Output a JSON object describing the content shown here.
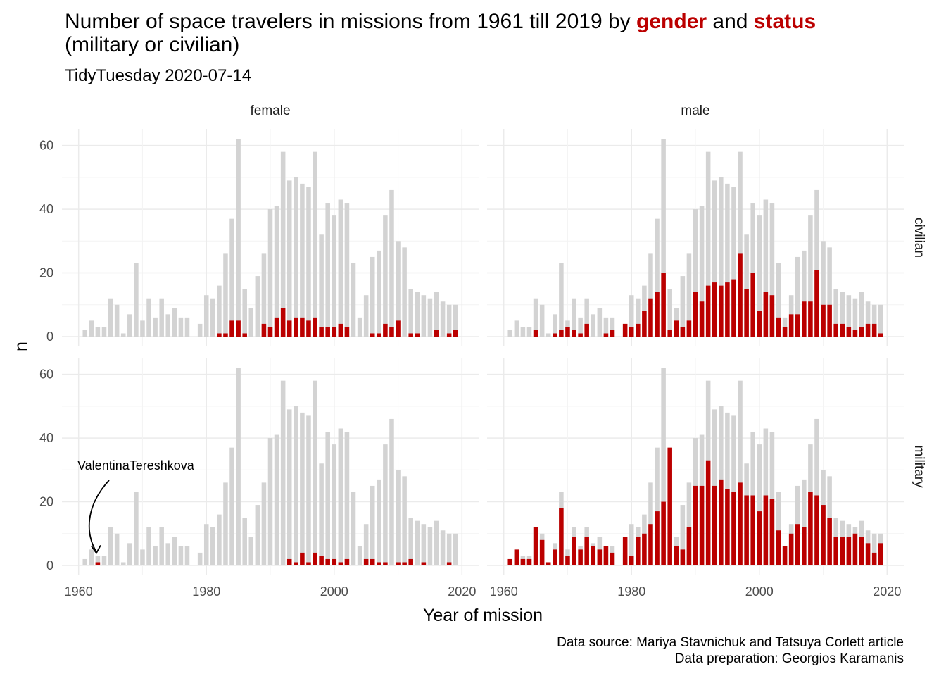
{
  "chart_data": {
    "type": "bar",
    "title": {
      "parts": [
        {
          "text": "Number of space travelers in missions from 1961 till 2019 by ",
          "highlight": false
        },
        {
          "text": "gender",
          "highlight": true
        },
        {
          "text": " and ",
          "highlight": false
        },
        {
          "text": "status",
          "highlight": true
        }
      ],
      "line2": "(military or civilian)"
    },
    "subtitle": "TidyTuesday 2020-07-14",
    "xlabel": "Year of mission",
    "ylabel": "n",
    "xlim": [
      1960,
      2020
    ],
    "ylim": [
      0,
      65
    ],
    "x_ticks": [
      "1960",
      "1980",
      "2000",
      "2020"
    ],
    "y_ticks": [
      "0",
      "20",
      "40",
      "60"
    ],
    "facet_columns": [
      "female",
      "male"
    ],
    "facet_rows": [
      "civilian",
      "military"
    ],
    "background_series": {
      "name": "all travelers",
      "color": "#d3d3d3",
      "years": [
        1961,
        1962,
        1963,
        1964,
        1965,
        1966,
        1967,
        1968,
        1969,
        1970,
        1971,
        1972,
        1973,
        1974,
        1975,
        1976,
        1977,
        1978,
        1979,
        1980,
        1981,
        1982,
        1983,
        1984,
        1985,
        1986,
        1987,
        1988,
        1989,
        1990,
        1991,
        1992,
        1993,
        1994,
        1995,
        1996,
        1997,
        1998,
        1999,
        2000,
        2001,
        2002,
        2003,
        2004,
        2005,
        2006,
        2007,
        2008,
        2009,
        2010,
        2011,
        2012,
        2013,
        2014,
        2015,
        2016,
        2017,
        2018,
        2019
      ],
      "values": [
        2,
        5,
        3,
        3,
        12,
        10,
        1,
        7,
        23,
        5,
        12,
        6,
        12,
        7,
        9,
        6,
        6,
        0,
        4,
        13,
        12,
        16,
        26,
        37,
        62,
        15,
        9,
        19,
        26,
        40,
        41,
        58,
        49,
        50,
        48,
        47,
        58,
        32,
        42,
        38,
        43,
        42,
        23,
        6,
        13,
        25,
        27,
        38,
        46,
        30,
        28,
        15,
        14,
        13,
        12,
        14,
        11,
        10,
        10
      ]
    },
    "highlight_color": "#bb0000",
    "panels": [
      {
        "gender": "female",
        "status": "civilian",
        "values": [
          0,
          0,
          0,
          0,
          0,
          0,
          0,
          0,
          0,
          0,
          0,
          0,
          0,
          0,
          0,
          0,
          0,
          0,
          0,
          0,
          0,
          1,
          1,
          5,
          5,
          1,
          0,
          0,
          4,
          3,
          6,
          9,
          5,
          6,
          6,
          5,
          6,
          3,
          3,
          3,
          4,
          3,
          0,
          0,
          0,
          1,
          1,
          4,
          3,
          5,
          0,
          1,
          1,
          0,
          0,
          2,
          0,
          1,
          2
        ]
      },
      {
        "gender": "male",
        "status": "civilian",
        "values": [
          0,
          0,
          0,
          0,
          2,
          0,
          0,
          1,
          2,
          3,
          2,
          1,
          4,
          0,
          0,
          1,
          2,
          0,
          4,
          3,
          4,
          8,
          12,
          14,
          20,
          2,
          5,
          3,
          5,
          14,
          11,
          16,
          17,
          16,
          17,
          18,
          26,
          15,
          20,
          8,
          14,
          13,
          6,
          3,
          7,
          7,
          11,
          11,
          21,
          10,
          10,
          4,
          4,
          3,
          2,
          3,
          4,
          4,
          1
        ]
      },
      {
        "gender": "female",
        "status": "military",
        "values": [
          0,
          0,
          1,
          0,
          0,
          0,
          0,
          0,
          0,
          0,
          0,
          0,
          0,
          0,
          0,
          0,
          0,
          0,
          0,
          0,
          0,
          0,
          0,
          0,
          0,
          0,
          0,
          0,
          0,
          0,
          0,
          0,
          2,
          1,
          4,
          1,
          4,
          3,
          2,
          2,
          1,
          2,
          0,
          0,
          2,
          2,
          1,
          1,
          0,
          1,
          1,
          2,
          0,
          1,
          0,
          0,
          0,
          1,
          0
        ]
      },
      {
        "gender": "male",
        "status": "military",
        "values": [
          2,
          5,
          2,
          2,
          12,
          8,
          1,
          5,
          18,
          3,
          9,
          5,
          9,
          6,
          5,
          6,
          4,
          0,
          9,
          3,
          9,
          10,
          13,
          17,
          20,
          37,
          6,
          5,
          12,
          25,
          25,
          33,
          25,
          27,
          24,
          23,
          26,
          22,
          22,
          17,
          22,
          21,
          11,
          6,
          10,
          13,
          12,
          23,
          22,
          19,
          15,
          9,
          9,
          9,
          10,
          9,
          7,
          4,
          7
        ]
      }
    ],
    "annotation": {
      "text": "ValentinaTereshkova",
      "year": 1963,
      "panel": "female-military"
    },
    "caption": [
      "Data source: Mariya Stavnichuk and Tatsuya Corlett article",
      "Data preparation: Georgios Karamanis"
    ],
    "grid": true,
    "legend": "none"
  }
}
